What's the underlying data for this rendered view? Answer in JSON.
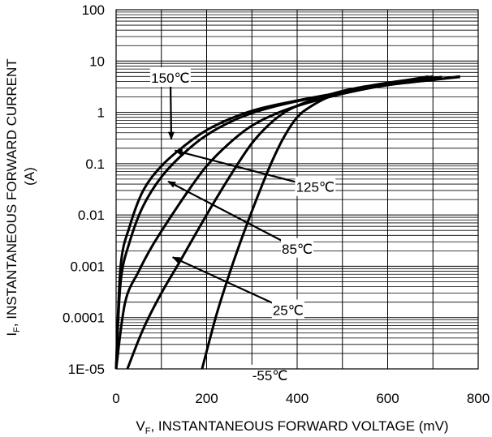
{
  "chart_data": {
    "type": "line",
    "xlabel_main": "V",
    "xlabel_sub": "F",
    "xlabel_rest": ", INSTANTANEOUS FORWARD VOLTAGE (mV)",
    "ylabel_main": "I",
    "ylabel_sub": "F",
    "ylabel_rest": ", INSTANTANEOUS FORWARD CURRENT",
    "ylabel_line2": "(A)",
    "x_scale": "linear",
    "y_scale": "log",
    "xlim": [
      0,
      800
    ],
    "ylim": [
      1e-05,
      100
    ],
    "x_ticks": [
      0,
      200,
      400,
      600,
      800
    ],
    "x_tick_labels": [
      "0",
      "200",
      "400",
      "600",
      "800"
    ],
    "y_ticks": [
      1e-05,
      0.0001,
      0.001,
      0.01,
      0.1,
      1,
      10,
      100
    ],
    "y_tick_labels": [
      "1E-05",
      "0.0001",
      "0.001",
      "0.01",
      "0.1",
      "1",
      "10",
      "100"
    ],
    "grid": true,
    "series": [
      {
        "name": "150℃",
        "x": [
          0,
          10,
          30,
          60,
          100,
          150,
          200,
          260,
          320,
          400,
          480,
          560,
          620,
          700,
          760
        ],
        "y": [
          1e-05,
          0.001,
          0.006,
          0.03,
          0.09,
          0.22,
          0.45,
          0.8,
          1.2,
          1.7,
          2.3,
          3.0,
          3.6,
          4.3,
          4.9
        ]
      },
      {
        "name": "125℃",
        "x": [
          0,
          10,
          30,
          60,
          100,
          150,
          200,
          260,
          320,
          400,
          480,
          560,
          620,
          700,
          760
        ],
        "y": [
          1e-05,
          0.0005,
          0.003,
          0.015,
          0.055,
          0.16,
          0.36,
          0.7,
          1.1,
          1.65,
          2.25,
          3.0,
          3.6,
          4.3,
          5.0
        ]
      },
      {
        "name": "85℃",
        "x": [
          0,
          20,
          50,
          80,
          120,
          160,
          200,
          250,
          300,
          360,
          420,
          500,
          580,
          650,
          720
        ],
        "y": [
          1e-05,
          0.0002,
          0.0008,
          0.0025,
          0.009,
          0.03,
          0.09,
          0.25,
          0.55,
          1.0,
          1.5,
          2.3,
          3.2,
          4.0,
          4.9
        ]
      },
      {
        "name": "25℃",
        "x": [
          25,
          60,
          100,
          140,
          180,
          220,
          260,
          300,
          340,
          380,
          430,
          500,
          560,
          620,
          700
        ],
        "y": [
          1e-05,
          6e-05,
          0.0003,
          0.0012,
          0.005,
          0.02,
          0.075,
          0.25,
          0.6,
          1.1,
          1.7,
          2.6,
          3.3,
          4.0,
          5.0
        ]
      },
      {
        "name": "-55℃",
        "x": [
          190,
          220,
          250,
          280,
          310,
          340,
          370,
          400,
          430,
          470,
          520,
          580,
          640,
          690
        ],
        "y": [
          1e-05,
          0.0001,
          0.0007,
          0.004,
          0.02,
          0.09,
          0.32,
          0.8,
          1.3,
          2.0,
          2.7,
          3.4,
          4.2,
          5.0
        ]
      }
    ],
    "annotations": [
      {
        "text": "150℃",
        "tx": 120,
        "ty": 4.7,
        "ax": 122,
        "ay": 0.3
      },
      {
        "text": "125℃",
        "tx": 440,
        "ty": 0.035,
        "ax": 130,
        "ay": 0.18
      },
      {
        "text": "85℃",
        "tx": 400,
        "ty": 0.0022,
        "ax": 115,
        "ay": 0.045
      },
      {
        "text": "25℃",
        "tx": 380,
        "ty": 0.00014,
        "ax": 125,
        "ay": 0.0015
      },
      {
        "text": "-55℃",
        "tx": 340,
        "ty": 7.5e-06,
        "ax": null,
        "ay": null
      }
    ]
  }
}
